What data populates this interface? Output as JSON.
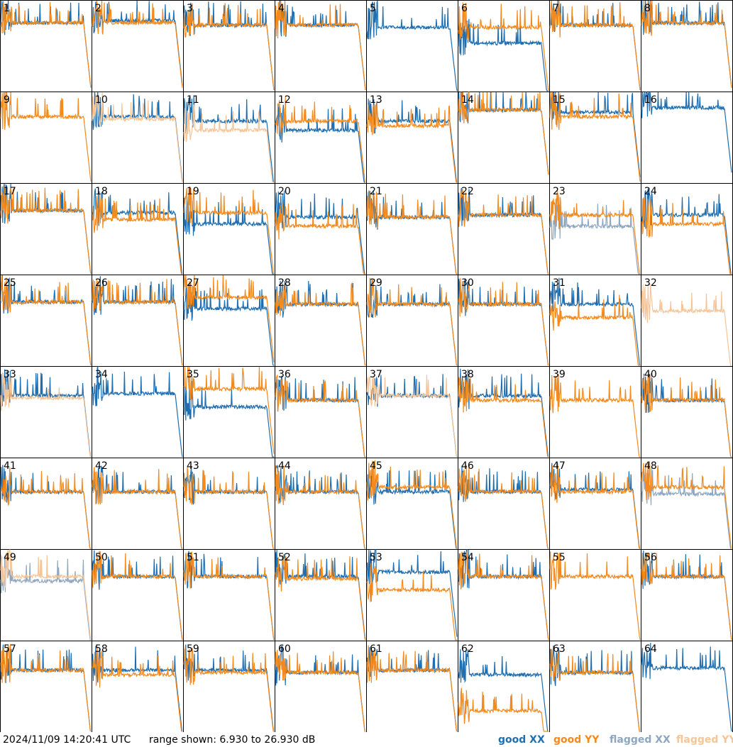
{
  "chart_data": {
    "type": "line",
    "panel_count": 64,
    "panel_labels": [
      "1",
      "2",
      "3",
      "4",
      "5",
      "6",
      "7",
      "8",
      "9",
      "10",
      "11",
      "12",
      "13",
      "14",
      "15",
      "16",
      "17",
      "18",
      "19",
      "20",
      "21",
      "22",
      "23",
      "24",
      "25",
      "26",
      "27",
      "28",
      "29",
      "30",
      "31",
      "32",
      "33",
      "34",
      "35",
      "36",
      "37",
      "38",
      "39",
      "40",
      "41",
      "42",
      "43",
      "44",
      "45",
      "46",
      "47",
      "48",
      "49",
      "50",
      "51",
      "52",
      "53",
      "54",
      "55",
      "56",
      "57",
      "58",
      "59",
      "60",
      "61",
      "62",
      "63",
      "64"
    ],
    "y_unit": "dB",
    "ylim": [
      6.93,
      26.93
    ],
    "timestamp": "2024/11/09 14:20:41 UTC",
    "range_text": "range shown: 6.930 to 26.930 dB",
    "series": [
      {
        "name": "good XX",
        "color": "#1f6eb0"
      },
      {
        "name": "good YY",
        "color": "#f28a1e"
      },
      {
        "name": "flagged XX",
        "color": "#8ea7c0"
      },
      {
        "name": "flagged YY",
        "color": "#f6c597"
      }
    ],
    "flagged_xx_panels": [
      23,
      48,
      49
    ],
    "flagged_yy_panels": [
      10,
      11,
      32,
      33,
      37,
      49
    ],
    "approx_levels_dB": {
      "1": {
        "xx": 22.0,
        "yy": 22.0
      },
      "2": {
        "xx": 22.5,
        "yy": 22.0
      },
      "3": {
        "xx": 21.5,
        "yy": 21.5
      },
      "4": {
        "xx": 21.5,
        "yy": 21.5
      },
      "5": {
        "xx": 21.0,
        "yy": null
      },
      "6": {
        "xx": 17.5,
        "yy": 21.0
      },
      "7": {
        "xx": 21.5,
        "yy": 21.5
      },
      "8": {
        "xx": 22.0,
        "yy": 22.0
      },
      "9": {
        "xx": null,
        "yy": 21.5
      },
      "10": {
        "xx": 21.5,
        "yy": 21.0
      },
      "11": {
        "xx": 20.5,
        "yy": 18.5
      },
      "12": {
        "xx": 18.5,
        "yy": 20.5
      },
      "13": {
        "xx": 20.5,
        "yy": 19.5
      },
      "14": {
        "xx": 23.0,
        "yy": 23.0
      },
      "15": {
        "xx": 22.5,
        "yy": 21.5
      },
      "16": {
        "xx": 23.5,
        "yy": null
      },
      "17": {
        "xx": 21.0,
        "yy": 21.0
      },
      "18": {
        "xx": 20.5,
        "yy": 19.0
      },
      "19": {
        "xx": 18.0,
        "yy": 20.5
      },
      "20": {
        "xx": 19.5,
        "yy": 17.5
      },
      "21": {
        "xx": 19.5,
        "yy": 19.5
      },
      "22": {
        "xx": 20.0,
        "yy": 20.0
      },
      "23": {
        "xx": 17.5,
        "yy": 20.0
      },
      "24": {
        "xx": 20.0,
        "yy": 18.0
      },
      "25": {
        "xx": 21.0,
        "yy": 21.0
      },
      "26": {
        "xx": 21.0,
        "yy": 21.0
      },
      "27": {
        "xx": 19.5,
        "yy": 22.0
      },
      "28": {
        "xx": 20.5,
        "yy": 20.5
      },
      "29": {
        "xx": 20.5,
        "yy": 20.5
      },
      "30": {
        "xx": 20.5,
        "yy": 20.5
      },
      "31": {
        "xx": 20.5,
        "yy": 17.5
      },
      "32": {
        "xx": null,
        "yy": 19.0
      },
      "33": {
        "xx": 20.5,
        "yy": 20.0
      },
      "34": {
        "xx": 21.0,
        "yy": null
      },
      "35": {
        "xx": 18.0,
        "yy": 22.0
      },
      "36": {
        "xx": 19.5,
        "yy": 19.5
      },
      "37": {
        "xx": 20.5,
        "yy": 20.5
      },
      "38": {
        "xx": 20.5,
        "yy": 19.5
      },
      "39": {
        "xx": null,
        "yy": 19.5
      },
      "40": {
        "xx": 19.5,
        "yy": 19.5
      },
      "41": {
        "xx": 19.5,
        "yy": 19.5
      },
      "42": {
        "xx": 19.5,
        "yy": 19.5
      },
      "43": {
        "xx": 19.5,
        "yy": 19.5
      },
      "44": {
        "xx": 19.5,
        "yy": 19.5
      },
      "45": {
        "xx": 19.5,
        "yy": 20.5
      },
      "46": {
        "xx": 19.5,
        "yy": 19.5
      },
      "47": {
        "xx": 20.0,
        "yy": 19.5
      },
      "48": {
        "xx": 19.0,
        "yy": 20.5
      },
      "49": {
        "xx": 20.0,
        "yy": 21.0
      },
      "50": {
        "xx": 21.0,
        "yy": 21.0
      },
      "51": {
        "xx": 21.0,
        "yy": 21.0
      },
      "52": {
        "xx": 21.0,
        "yy": 20.5
      },
      "53": {
        "xx": 22.0,
        "yy": 18.0
      },
      "54": {
        "xx": 21.0,
        "yy": 21.0
      },
      "55": {
        "xx": null,
        "yy": 21.0
      },
      "56": {
        "xx": 21.0,
        "yy": 21.0
      },
      "57": {
        "xx": 20.5,
        "yy": 20.5
      },
      "58": {
        "xx": 20.5,
        "yy": 19.5
      },
      "59": {
        "xx": 20.5,
        "yy": 20.0
      },
      "60": {
        "xx": 20.0,
        "yy": 20.0
      },
      "61": {
        "xx": 20.5,
        "yy": 20.5
      },
      "62": {
        "xx": 19.5,
        "yy": 11.5
      },
      "63": {
        "xx": 20.0,
        "yy": 20.0
      },
      "64": {
        "xx": 21.0,
        "yy": null
      }
    }
  }
}
